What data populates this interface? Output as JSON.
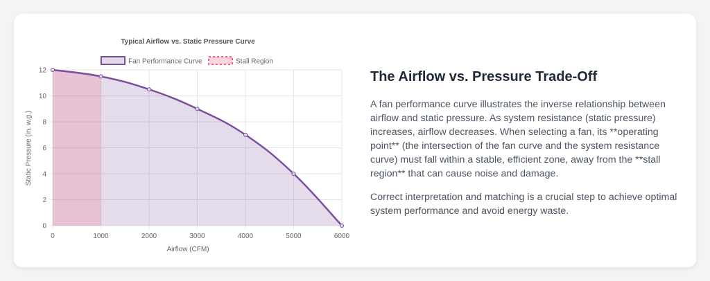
{
  "chart_data": {
    "type": "line",
    "title": "Typical Airflow vs. Static Pressure Curve",
    "xlabel": "Airflow (CFM)",
    "ylabel": "Static Pressure (in. w.g.)",
    "xlim": [
      0,
      6000
    ],
    "ylim": [
      0,
      12
    ],
    "x_ticks": [
      "0",
      "1000",
      "2000",
      "3000",
      "4000",
      "5000",
      "6000"
    ],
    "y_ticks": [
      "0",
      "2",
      "4",
      "6",
      "8",
      "10",
      "12"
    ],
    "grid": true,
    "legend_position": "top",
    "series": [
      {
        "name": "Fan Performance Curve",
        "x": [
          0,
          1000,
          2000,
          3000,
          4000,
          5000,
          6000
        ],
        "y": [
          12,
          11.5,
          10.5,
          9,
          7,
          4,
          0
        ],
        "color": "#7b4f9d",
        "fill": true
      },
      {
        "name": "Stall Region",
        "x": [
          0,
          1000
        ],
        "y": [
          12,
          11.5
        ],
        "color": "#f05a7e",
        "dashed": true,
        "fill": true
      }
    ]
  },
  "text": {
    "heading": "The Airflow vs. Pressure Trade-Off",
    "paragraph1": "A fan performance curve illustrates the inverse relationship between airflow and static pressure. As system resistance (static pressure) increases, airflow decreases. When selecting a fan, its **operating point** (the intersection of the fan curve and the system resistance curve) must fall within a stable, efficient zone, away from the **stall region** that can cause noise and damage.",
    "paragraph2": "Correct interpretation and matching is a crucial step to achieve optimal system performance and avoid energy waste."
  }
}
